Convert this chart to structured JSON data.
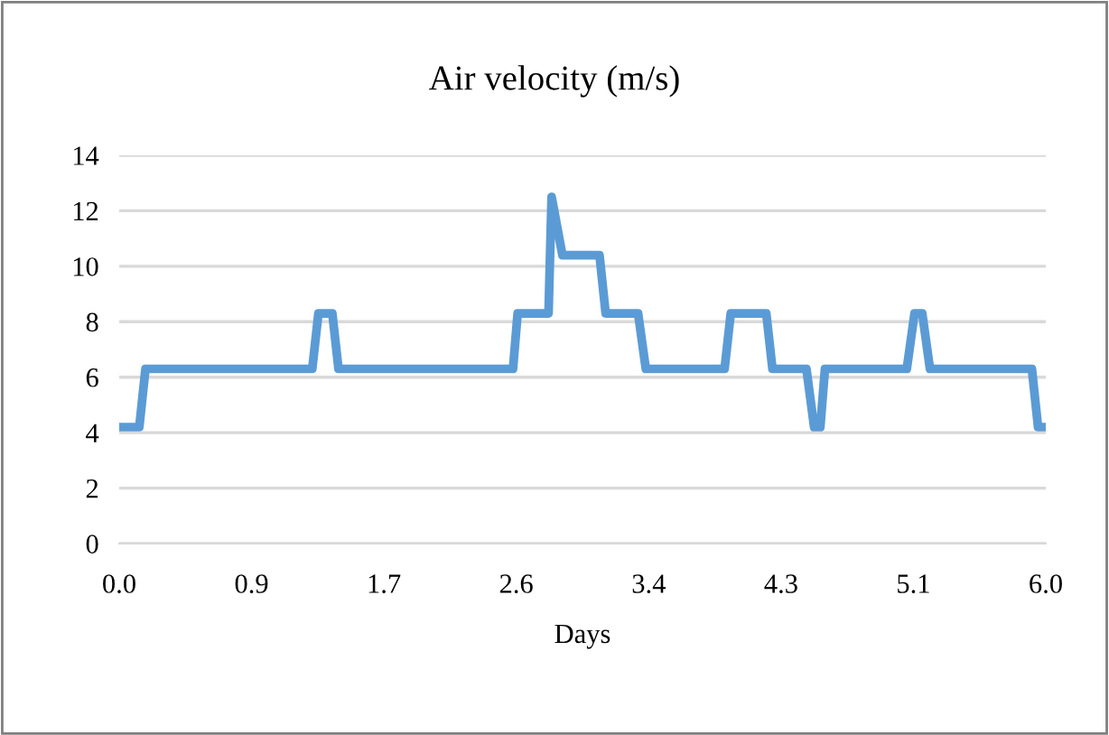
{
  "chart_data": {
    "type": "line",
    "title": "Air velocity (m/s)",
    "xlabel": "Days",
    "x": [
      0,
      0.13,
      0.17,
      1.25,
      1.29,
      1.38,
      1.42,
      2.55,
      2.58,
      2.78,
      2.8,
      2.87,
      3.11,
      3.15,
      3.36,
      3.41,
      3.92,
      3.96,
      4.19,
      4.23,
      4.45,
      4.5,
      4.54,
      4.57,
      5.1,
      5.15,
      5.2,
      5.25,
      5.91,
      5.95,
      6.0
    ],
    "series": [
      {
        "color": "#5b9bd5",
        "values": [
          4.2,
          4.2,
          6.3,
          6.3,
          8.3,
          8.3,
          6.3,
          6.3,
          8.3,
          8.3,
          12.5,
          10.4,
          10.4,
          8.3,
          8.3,
          6.3,
          6.3,
          8.3,
          8.3,
          6.3,
          6.3,
          4.2,
          4.2,
          6.3,
          6.3,
          8.3,
          8.3,
          6.3,
          6.3,
          4.2,
          4.2
        ]
      }
    ],
    "xlim": [
      0,
      6
    ],
    "xticks": [
      {
        "value": 0,
        "label": "0.0"
      },
      {
        "value": 0.857,
        "label": "0.9"
      },
      {
        "value": 1.714,
        "label": "1.7"
      },
      {
        "value": 2.571,
        "label": "2.6"
      },
      {
        "value": 3.429,
        "label": "3.4"
      },
      {
        "value": 4.286,
        "label": "4.3"
      },
      {
        "value": 5.143,
        "label": "5.1"
      },
      {
        "value": 6,
        "label": "6.0"
      }
    ],
    "ylim": [
      0,
      14
    ],
    "yticks": [
      0,
      2,
      4,
      6,
      8,
      10,
      12,
      14
    ],
    "grid": "y",
    "marker": "none",
    "line_style": "solid"
  }
}
